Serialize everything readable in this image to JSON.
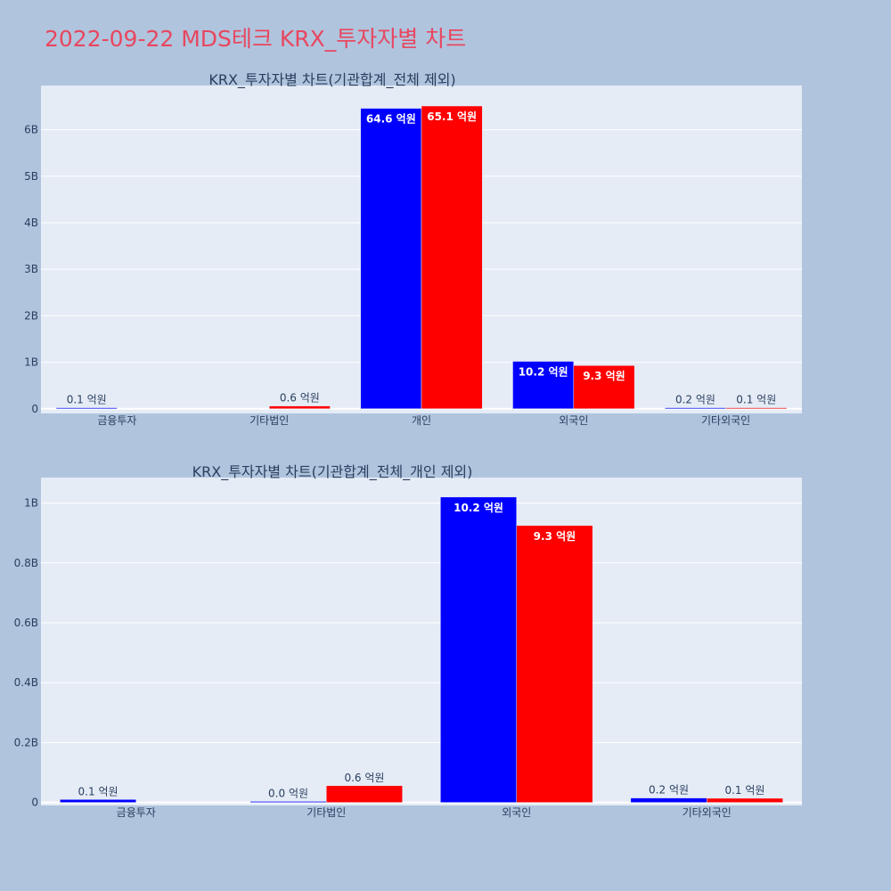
{
  "page_title": "2022-09-22 MDS테크 KRX_투자자별 차트",
  "colors": {
    "background": "#b0c4de",
    "plot_bg": "#e5ecf6",
    "title": "#e8475f",
    "series_a": "#0000ff",
    "series_b": "#ff0000"
  },
  "chart_data": [
    {
      "type": "bar",
      "title": "KRX_투자자별 차트(기관합계_전체 제외)",
      "categories": [
        "금융투자",
        "기타법인",
        "개인",
        "외국인",
        "기타외국인"
      ],
      "ylim": [
        -0.1,
        6.95
      ],
      "yticks": [
        0,
        1,
        2,
        3,
        4,
        5,
        6
      ],
      "ytick_labels": [
        "0",
        "1B",
        "2B",
        "3B",
        "4B",
        "5B",
        "6B"
      ],
      "grid": true,
      "series": [
        {
          "color": "#0000ff",
          "values": [
            0.01,
            null,
            6.46,
            1.02,
            0.02
          ],
          "labels": [
            "0.1 억원",
            "",
            "64.6 억원",
            "10.2 억원",
            "0.2 억원"
          ]
        },
        {
          "color": "#ff0000",
          "values": [
            null,
            0.06,
            6.51,
            0.93,
            0.01
          ],
          "labels": [
            "",
            "0.6 억원",
            "65.1 억원",
            "9.3 억원",
            "0.1 억원"
          ]
        }
      ]
    },
    {
      "type": "bar",
      "title": "KRX_투자자별 차트(기관합계_전체_개인 제외)",
      "categories": [
        "금융투자",
        "기타법인",
        "외국인",
        "기타외국인"
      ],
      "ylim": [
        -0.01,
        1.085
      ],
      "yticks": [
        0,
        0.2,
        0.4,
        0.6,
        0.8,
        1.0
      ],
      "ytick_labels": [
        "0",
        "0.2B",
        "0.4B",
        "0.6B",
        "0.8B",
        "1B"
      ],
      "grid": true,
      "series": [
        {
          "color": "#0000ff",
          "values": [
            0.01,
            0.0,
            1.02,
            0.015
          ],
          "labels": [
            "0.1 억원",
            "0.0 억원",
            "10.2 억원",
            "0.2 억원"
          ]
        },
        {
          "color": "#ff0000",
          "values": [
            null,
            0.056,
            0.925,
            0.014
          ],
          "labels": [
            "",
            "0.6 억원",
            "9.3 억원",
            "0.1 억원"
          ]
        }
      ]
    }
  ]
}
